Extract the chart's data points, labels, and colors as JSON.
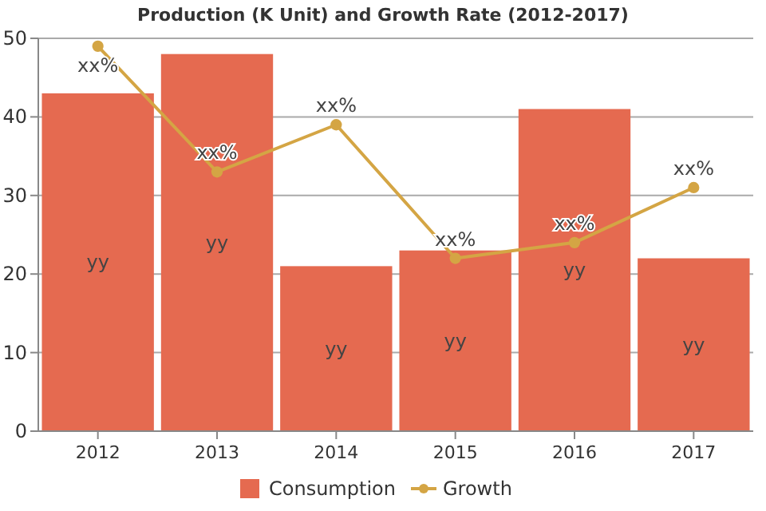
{
  "chart_data": {
    "type": "bar",
    "title": "Production (K Unit) and Growth Rate (2012-2017)",
    "categories": [
      "2012",
      "2013",
      "2014",
      "2015",
      "2016",
      "2017"
    ],
    "series": [
      {
        "name": "Consumption",
        "color": "#e56a50",
        "values": [
          43,
          48,
          21,
          23,
          41,
          22
        ],
        "value_labels": [
          "yy",
          "yy",
          "yy",
          "yy",
          "yy",
          "yy"
        ]
      },
      {
        "name": "Growth",
        "type": "line",
        "color": "#d4a544",
        "values": [
          49,
          33,
          39,
          22,
          24,
          31
        ],
        "value_labels": [
          "xx%",
          "xx%",
          "xx%",
          "xx%",
          "xx%",
          "xx%"
        ]
      }
    ],
    "ylim": [
      0,
      50
    ],
    "yticks": [
      0,
      10,
      20,
      30,
      40,
      50
    ],
    "grid": "y",
    "legend": "bottom",
    "marker": "circle",
    "line_style": "solid"
  }
}
